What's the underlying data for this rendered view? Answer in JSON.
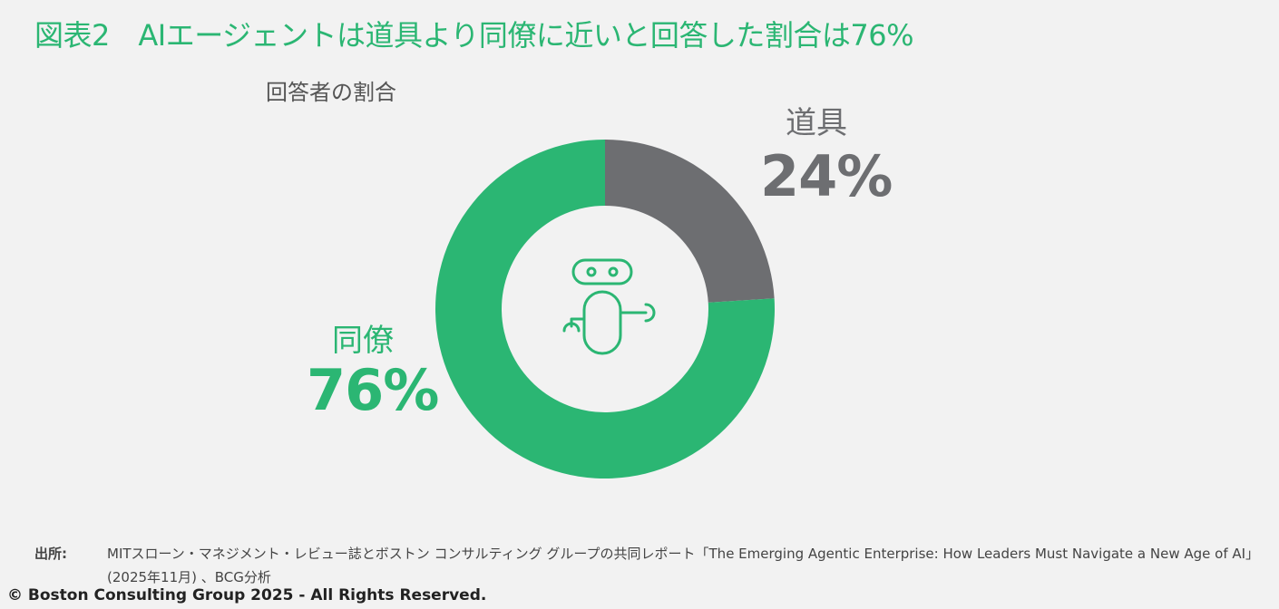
{
  "title": "図表2　AIエージェントは道具より同僚に近いと回答した割合は76%",
  "subtitle": "回答者の割合",
  "chart_data": {
    "type": "pie",
    "donut": true,
    "slices": [
      {
        "name": "道具",
        "value": 24,
        "label": "24%",
        "color": "#6d6e71"
      },
      {
        "name": "同僚",
        "value": 76,
        "label": "76%",
        "color": "#2bb673"
      }
    ],
    "center_icon": "robot-icon"
  },
  "source": {
    "key": "出所:",
    "line1": "MITスローン・マネジメント・レビュー誌とボストン コンサルティング グループの共同レポート「The Emerging Agentic Enterprise: How Leaders Must Navigate a New Age of AI」",
    "line2": "(2025年11月) 、BCG分析"
  },
  "copyright": "© Boston Consulting Group 2025 - All Rights Reserved."
}
